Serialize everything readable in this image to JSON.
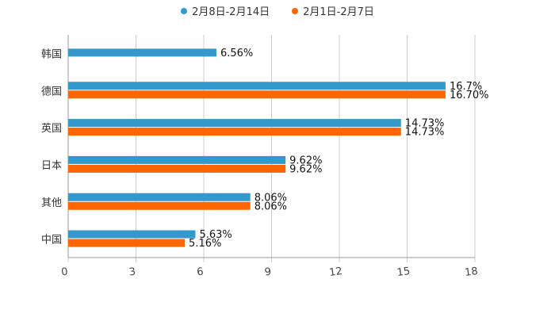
{
  "chart_data": {
    "type": "bar",
    "orientation": "horizontal",
    "categories": [
      "韩国",
      "德国",
      "英国",
      "日本",
      "其他",
      "中国"
    ],
    "series": [
      {
        "name": "2月8日-2月14日",
        "color": "#3399cc",
        "values": [
          6.56,
          16.7,
          14.73,
          9.62,
          8.06,
          5.63
        ],
        "labels": [
          "6.56%",
          "16.7%",
          "14.73%",
          "9.62%",
          "8.06%",
          "5.63%"
        ]
      },
      {
        "name": "2月1日-2月7日",
        "color": "#ff6600",
        "values": [
          null,
          16.7,
          14.73,
          9.62,
          8.06,
          5.16
        ],
        "labels": [
          null,
          "16.70%",
          "14.73%",
          "9.62%",
          "8.06%",
          "5.16%"
        ]
      }
    ],
    "xlim": [
      0,
      18
    ],
    "xticks": [
      "0",
      "3",
      "6",
      "9",
      "12",
      "15",
      "18"
    ],
    "grid": true,
    "legend_position": "top-center",
    "title": "",
    "xlabel": "",
    "ylabel": ""
  }
}
